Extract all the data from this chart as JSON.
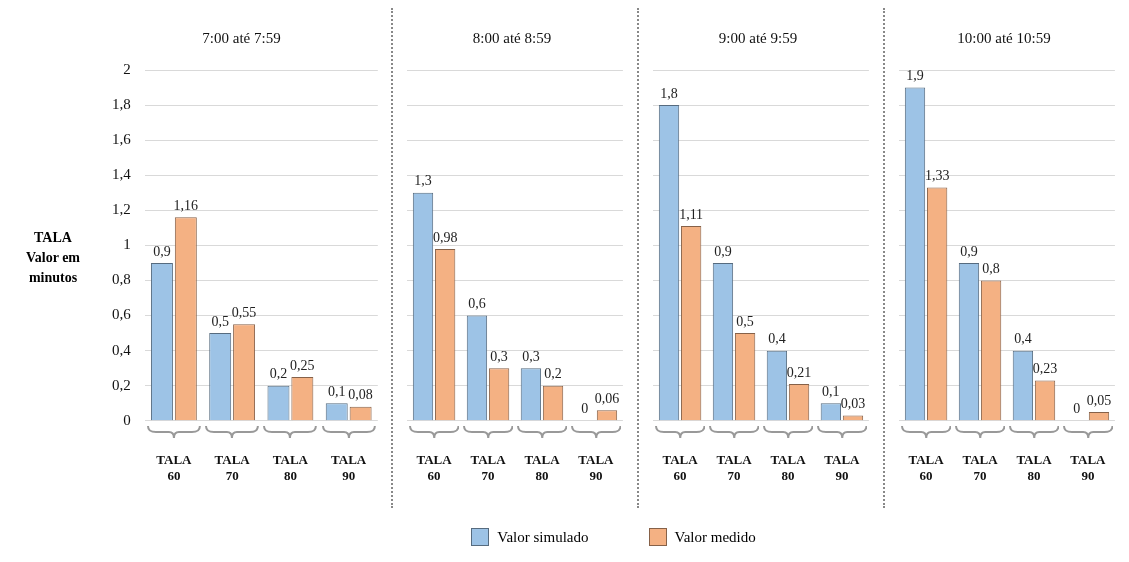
{
  "chart_data": [
    {
      "type": "bar",
      "title": "7:00 até 7:59",
      "ylabel": "TALA\nValor em minutos",
      "categories": [
        "TALA 60",
        "TALA 70",
        "TALA 80",
        "TALA 90"
      ],
      "ylim": [
        0,
        2
      ],
      "yticks": [
        0,
        {
          "value": 0.2,
          "label": "0,2"
        },
        {
          "value": 0.4,
          "label": "0,4"
        },
        {
          "value": 0.6,
          "label": "0,6"
        },
        {
          "value": 0.8,
          "label": "0,8"
        },
        1,
        {
          "value": 1.2,
          "label": "1,2"
        },
        {
          "value": 1.4,
          "label": "1,4"
        },
        {
          "value": 1.6,
          "label": "1,6"
        },
        {
          "value": 1.8,
          "label": "1,8"
        },
        2
      ],
      "grid": "y",
      "legend": "bottom",
      "series": [
        {
          "name": "Valor simulado",
          "color": "#9dc3e6",
          "values": [
            0.9,
            0.5,
            0.2,
            0.1
          ],
          "value_labels": [
            "0,9",
            "0,5",
            "0,2",
            "0,1"
          ]
        },
        {
          "name": "Valor medido",
          "color": "#f4b183",
          "values": [
            1.16,
            0.55,
            0.25,
            0.08
          ],
          "value_labels": [
            "1,16",
            "0,55",
            "0,25",
            "0,08"
          ]
        }
      ]
    },
    {
      "type": "bar",
      "title": "8:00 até 8:59",
      "categories": [
        "TALA 60",
        "TALA 70",
        "TALA 80",
        "TALA 90"
      ],
      "ylim": [
        0,
        2
      ],
      "yticks": [
        {
          "value": 0,
          "label": null
        },
        {
          "value": 0.2,
          "label": null
        },
        {
          "value": 0.4,
          "label": null
        },
        {
          "value": 0.6,
          "label": null
        },
        {
          "value": 0.8,
          "label": null
        },
        {
          "value": 1,
          "label": null
        },
        {
          "value": 1.2,
          "label": null
        },
        {
          "value": 1.4,
          "label": null
        },
        {
          "value": 1.6,
          "label": null
        },
        {
          "value": 1.8,
          "label": null
        },
        {
          "value": 2,
          "label": null
        }
      ],
      "grid": "y",
      "tick_labels": "x",
      "series": [
        {
          "color": "#9dc3e6",
          "values": [
            1.3,
            0.6,
            0.3,
            0
          ],
          "value_labels": [
            "1,3",
            "0,6",
            "0,3",
            "0"
          ]
        },
        {
          "color": "#f4b183",
          "values": [
            0.98,
            0.3,
            0.2,
            0.06
          ],
          "value_labels": [
            "0,98",
            "0,3",
            "0,2",
            "0,06"
          ]
        }
      ]
    },
    {
      "type": "bar",
      "title": "9:00 até 9:59",
      "categories": [
        "TALA 60",
        "TALA 70",
        "TALA 80",
        "TALA 90"
      ],
      "ylim": [
        0,
        2
      ],
      "yticks": [
        {
          "value": 0,
          "label": null
        },
        {
          "value": 0.2,
          "label": null
        },
        {
          "value": 0.4,
          "label": null
        },
        {
          "value": 0.6,
          "label": null
        },
        {
          "value": 0.8,
          "label": null
        },
        {
          "value": 1,
          "label": null
        },
        {
          "value": 1.2,
          "label": null
        },
        {
          "value": 1.4,
          "label": null
        },
        {
          "value": 1.6,
          "label": null
        },
        {
          "value": 1.8,
          "label": null
        },
        {
          "value": 2,
          "label": null
        }
      ],
      "grid": "y",
      "tick_labels": "x",
      "series": [
        {
          "color": "#9dc3e6",
          "values": [
            1.8,
            0.9,
            0.4,
            0.1
          ],
          "value_labels": [
            "1,8",
            "0,9",
            "0,4",
            "0,1"
          ]
        },
        {
          "color": "#f4b183",
          "values": [
            1.11,
            0.5,
            0.21,
            0.03
          ],
          "value_labels": [
            "1,11",
            "0,5",
            "0,21",
            "0,03"
          ]
        }
      ]
    },
    {
      "type": "bar",
      "title": "10:00 até 10:59",
      "categories": [
        "TALA 60",
        "TALA 70",
        "TALA 80",
        "TALA 90"
      ],
      "ylim": [
        0,
        2
      ],
      "yticks": [
        {
          "value": 0,
          "label": null
        },
        {
          "value": 0.2,
          "label": null
        },
        {
          "value": 0.4,
          "label": null
        },
        {
          "value": 0.6,
          "label": null
        },
        {
          "value": 0.8,
          "label": null
        },
        {
          "value": 1,
          "label": null
        },
        {
          "value": 1.2,
          "label": null
        },
        {
          "value": 1.4,
          "label": null
        },
        {
          "value": 1.6,
          "label": null
        },
        {
          "value": 1.8,
          "label": null
        },
        {
          "value": 2,
          "label": null
        }
      ],
      "grid": "y",
      "tick_labels": "x",
      "series": [
        {
          "color": "#9dc3e6",
          "values": [
            1.9,
            0.9,
            0.4,
            0
          ],
          "value_labels": [
            "1,9",
            "0,9",
            "0,4",
            "0"
          ]
        },
        {
          "color": "#f4b183",
          "values": [
            1.33,
            0.8,
            0.23,
            0.05
          ],
          "value_labels": [
            "1,33",
            "0,8",
            "0,23",
            "0,05"
          ]
        }
      ]
    }
  ]
}
